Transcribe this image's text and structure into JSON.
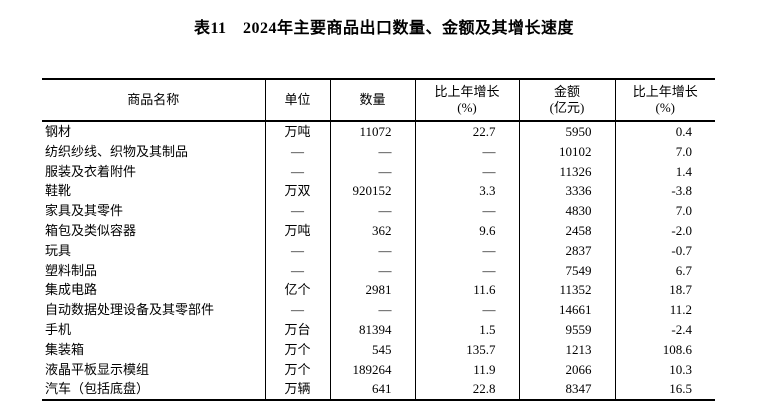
{
  "page": {
    "title": "表11　2024年主要商品出口数量、金额及其增长速度"
  },
  "colors": {
    "text": "#000000",
    "background": "#ffffff",
    "border": "#000000"
  },
  "table": {
    "headers": {
      "commodity": "商品名称",
      "unit": "单位",
      "quantity": "数量",
      "quantity_growth_line1": "比上年增长",
      "quantity_growth_line2": "(%)",
      "amount_line1": "金额",
      "amount_line2": "(亿元)",
      "amount_growth_line1": "比上年增长",
      "amount_growth_line2": "(%)"
    },
    "rows": [
      {
        "name": "钢材",
        "unit": "万吨",
        "quantity": "11072",
        "quantity_growth": "22.7",
        "amount": "5950",
        "amount_growth": "0.4"
      },
      {
        "name": "纺织纱线、织物及其制品",
        "unit": "—",
        "quantity": "—",
        "quantity_growth": "—",
        "amount": "10102",
        "amount_growth": "7.0"
      },
      {
        "name": "服装及衣着附件",
        "unit": "—",
        "quantity": "—",
        "quantity_growth": "—",
        "amount": "11326",
        "amount_growth": "1.4"
      },
      {
        "name": "鞋靴",
        "unit": "万双",
        "quantity": "920152",
        "quantity_growth": "3.3",
        "amount": "3336",
        "amount_growth": "-3.8"
      },
      {
        "name": "家具及其零件",
        "unit": "—",
        "quantity": "—",
        "quantity_growth": "—",
        "amount": "4830",
        "amount_growth": "7.0"
      },
      {
        "name": "箱包及类似容器",
        "unit": "万吨",
        "quantity": "362",
        "quantity_growth": "9.6",
        "amount": "2458",
        "amount_growth": "-2.0"
      },
      {
        "name": "玩具",
        "unit": "—",
        "quantity": "—",
        "quantity_growth": "—",
        "amount": "2837",
        "amount_growth": "-0.7"
      },
      {
        "name": "塑料制品",
        "unit": "—",
        "quantity": "—",
        "quantity_growth": "—",
        "amount": "7549",
        "amount_growth": "6.7"
      },
      {
        "name": "集成电路",
        "unit": "亿个",
        "quantity": "2981",
        "quantity_growth": "11.6",
        "amount": "11352",
        "amount_growth": "18.7"
      },
      {
        "name": "自动数据处理设备及其零部件",
        "unit": "—",
        "quantity": "—",
        "quantity_growth": "—",
        "amount": "14661",
        "amount_growth": "11.2"
      },
      {
        "name": "手机",
        "unit": "万台",
        "quantity": "81394",
        "quantity_growth": "1.5",
        "amount": "9559",
        "amount_growth": "-2.4"
      },
      {
        "name": "集装箱",
        "unit": "万个",
        "quantity": "545",
        "quantity_growth": "135.7",
        "amount": "1213",
        "amount_growth": "108.6"
      },
      {
        "name": "液晶平板显示模组",
        "unit": "万个",
        "quantity": "189264",
        "quantity_growth": "11.9",
        "amount": "2066",
        "amount_growth": "10.3"
      },
      {
        "name": "汽车（包括底盘）",
        "unit": "万辆",
        "quantity": "641",
        "quantity_growth": "22.8",
        "amount": "8347",
        "amount_growth": "16.5"
      }
    ]
  }
}
